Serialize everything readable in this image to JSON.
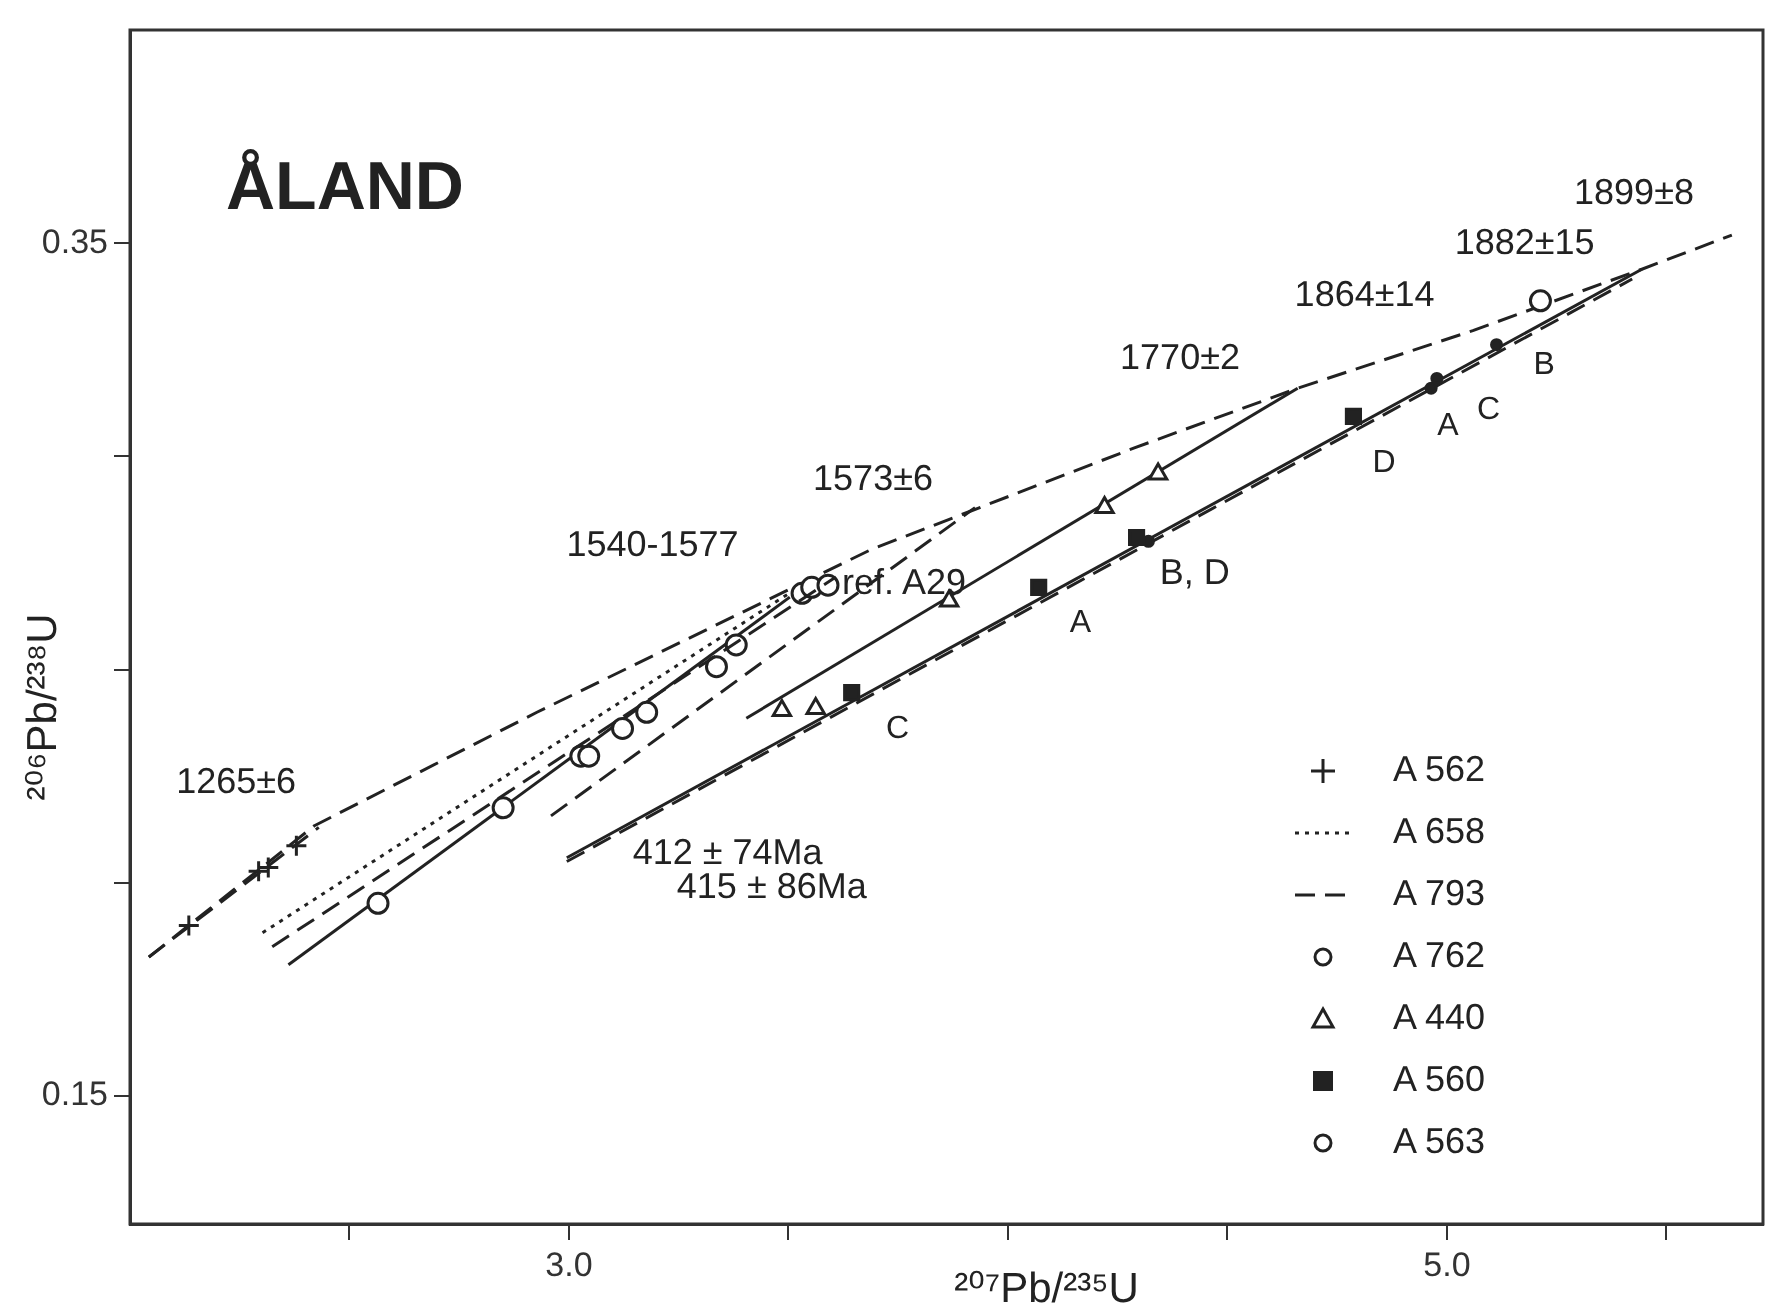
{
  "chart_data": {
    "type": "scatter",
    "title": "ÅLAND",
    "xlabel": "²⁰⁷Pb/²³⁵U",
    "ylabel": "²⁰⁶Pb/²³⁸U",
    "xlim": [
      2.0,
      5.72
    ],
    "xticks": [
      {
        "value": 2.5,
        "label": null
      },
      {
        "value": 3.0,
        "label": "3.0"
      },
      {
        "value": 3.5,
        "label": null
      },
      {
        "value": 4.0,
        "label": null
      },
      {
        "value": 4.5,
        "label": null
      },
      {
        "value": 5.0,
        "label": "5.0"
      },
      {
        "value": 5.5,
        "label": null
      }
    ],
    "ylim": [
      0.12,
      0.4
    ],
    "yticks": [
      {
        "value": 0.15,
        "label": "0.15"
      },
      {
        "value": 0.2,
        "label": null
      },
      {
        "value": 0.25,
        "label": null
      },
      {
        "value": 0.3,
        "label": null
      },
      {
        "value": 0.35,
        "label": "0.35"
      }
    ],
    "grid": false,
    "legend": "bottom right",
    "series": [
      {
        "name": "A 562",
        "type": "scatter",
        "marker": "cross",
        "color": "#222222",
        "x": [
          2.134,
          2.293,
          2.315,
          2.379
        ],
        "values": [
          0.19,
          0.2027,
          0.2036,
          0.2087
        ]
      },
      {
        "name": "A 658",
        "type": "line",
        "line_style": "dotted",
        "color": "#222222",
        "x": [
          2.302,
          3.503
        ],
        "values": [
          0.1883,
          0.268
        ]
      },
      {
        "name": "A 793",
        "type": "line",
        "line_style": "dashed",
        "color": "#222222",
        "x": [
          2.324,
          3.608
        ],
        "values": [
          0.185,
          0.2717
        ]
      },
      {
        "name": "A 762",
        "type": "scatter",
        "marker": "circle",
        "color": "#222222",
        "x": [
          2.565,
          2.85,
          3.027,
          3.045,
          3.122,
          3.177,
          3.336,
          3.381,
          3.531,
          3.553,
          3.59
        ],
        "values": [
          0.1952,
          0.2176,
          0.2297,
          0.2297,
          0.2362,
          0.24,
          0.2507,
          0.2558,
          0.2679,
          0.2693,
          0.2698
        ]
      },
      {
        "name": "A 440",
        "type": "scatter",
        "marker": "triangle",
        "color": "#222222",
        "x": [
          3.485,
          3.562,
          3.866,
          4.22,
          4.342
        ],
        "values": [
          0.2404,
          0.2409,
          0.2661,
          0.288,
          0.2959
        ]
      },
      {
        "name": "A 560",
        "type": "scatter",
        "marker": "square",
        "color": "#222222",
        "x": [
          3.644,
          4.07,
          4.293,
          4.787
        ],
        "values": [
          0.2446,
          0.2693,
          0.281,
          0.3094
        ]
      },
      {
        "name": "A 563",
        "type": "scatter",
        "marker": "circle",
        "color": "#222222",
        "x": [
          5.213
        ],
        "values": [
          0.3365
        ]
      },
      {
        "type": "scatter",
        "marker": "circle",
        "color": "#222222",
        "x": [
          4.32,
          4.964,
          4.977,
          5.113
        ],
        "values": [
          0.2801,
          0.316,
          0.3183,
          0.3262
        ]
      },
      {
        "type": "line",
        "line_style": "dashed",
        "color": "#222222",
        "x": [
          2.043,
          2.42,
          2.927,
          3.689,
          4.288,
          4.66,
          5.059,
          5.444,
          5.649
        ],
        "values": [
          0.1826,
          0.2134,
          0.24,
          0.2782,
          0.302,
          0.316,
          0.3295,
          0.3439,
          0.3519
        ]
      },
      {
        "type": "line",
        "line_style": "dashed",
        "color": "#222222",
        "x": [
          2.043,
          2.43
        ],
        "values": [
          0.1826,
          0.213
        ]
      },
      {
        "type": "line",
        "line_style": "solid",
        "color": "#222222",
        "x": [
          2.361,
          3.503
        ],
        "values": [
          0.1808,
          0.267
        ]
      },
      {
        "type": "line",
        "line_style": "dashed",
        "color": "#222222",
        "x": [
          2.959,
          3.925
        ],
        "values": [
          0.2157,
          0.288
        ]
      },
      {
        "type": "line",
        "line_style": "solid",
        "color": "#222222",
        "x": [
          3.404,
          4.66
        ],
        "values": [
          0.2386,
          0.316
        ]
      },
      {
        "type": "line",
        "line_style": "solid",
        "color": "#222222",
        "x": [
          2.995,
          5.444
        ],
        "values": [
          0.2059,
          0.3439
        ]
      },
      {
        "type": "line",
        "line_style": "dashed",
        "color": "#222222",
        "x": [
          2.995,
          5.422
        ],
        "values": [
          0.205,
          0.3416
        ]
      }
    ],
    "annotations": [
      "1265±6",
      "1540-1577",
      "1573±6",
      "1770±2",
      "1864±14",
      "1882±15",
      "1899±8",
      "ref. A29",
      "412 ± 74Ma",
      "415 ± 86Ma",
      "C",
      "A",
      "B, D",
      "D",
      "A",
      "C",
      "B"
    ]
  }
}
